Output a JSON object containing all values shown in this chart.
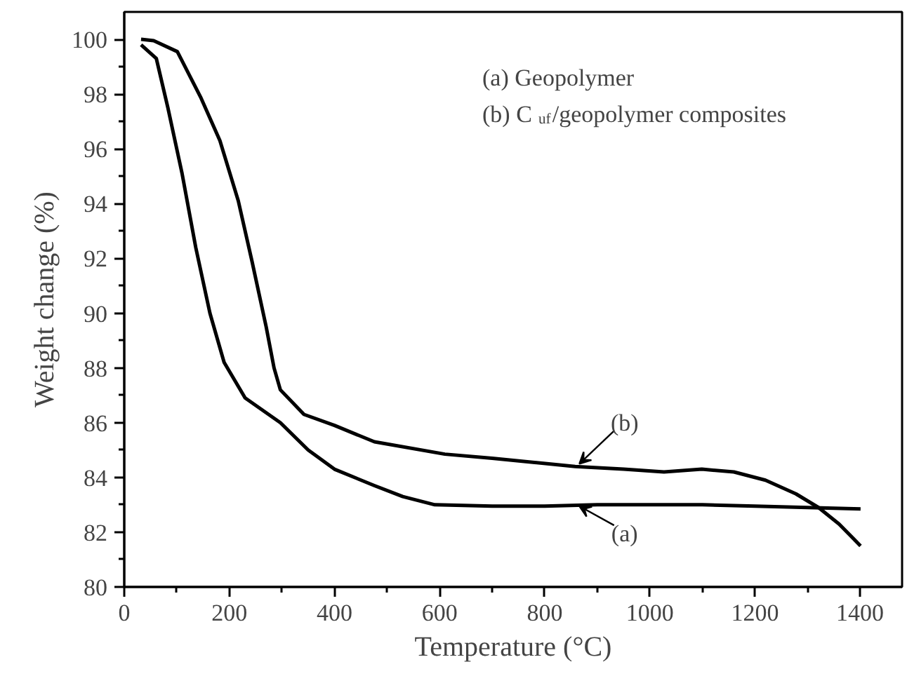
{
  "chart_data": {
    "type": "line",
    "xlabel": "Temperature (°C)",
    "ylabel": "Weight change (%)",
    "xlim": [
      0,
      1480
    ],
    "ylim": [
      80,
      101
    ],
    "xticks": [
      0,
      200,
      400,
      600,
      800,
      1000,
      1200,
      1400
    ],
    "yticks": [
      80,
      82,
      84,
      86,
      88,
      90,
      92,
      94,
      96,
      98,
      100
    ],
    "grid": false,
    "line_style": "solid",
    "marker": "none",
    "annotations": [
      "(a) Geopolymer",
      "(b) C$_{uf}$/geopolymer composites",
      {
        "text": "(b)",
        "x": 866,
        "y": 84.5
      },
      {
        "text": "(a)",
        "x": 866,
        "y": 82.95
      }
    ],
    "series": [
      {
        "color": "#000000",
        "x": [
          32,
          61,
          83,
          110,
          136,
          163,
          190,
          230,
          297,
          350,
          400,
          476,
          530,
          591,
          700,
          800,
          900,
          1000,
          1100,
          1200,
          1300,
          1401
        ],
        "values": [
          99.8,
          99.3,
          97.5,
          95.1,
          92.4,
          90.0,
          88.2,
          86.9,
          86.0,
          85.0,
          84.3,
          83.7,
          83.3,
          83.0,
          82.95,
          82.95,
          83.0,
          83.0,
          83.0,
          82.95,
          82.9,
          82.85
        ]
      },
      {
        "color": "#000000",
        "x": [
          32,
          56,
          101,
          145,
          182,
          217,
          243,
          270,
          285,
          297,
          342,
          400,
          476,
          610,
          700,
          858,
          950,
          1027,
          1099,
          1160,
          1220,
          1278,
          1321,
          1360,
          1401
        ],
        "values": [
          100.0,
          99.95,
          99.55,
          97.9,
          96.3,
          94.1,
          91.9,
          89.5,
          88.0,
          87.2,
          86.3,
          85.9,
          85.3,
          84.85,
          84.7,
          84.4,
          84.3,
          84.2,
          84.3,
          84.2,
          83.9,
          83.4,
          82.9,
          82.3,
          81.5
        ]
      }
    ]
  }
}
